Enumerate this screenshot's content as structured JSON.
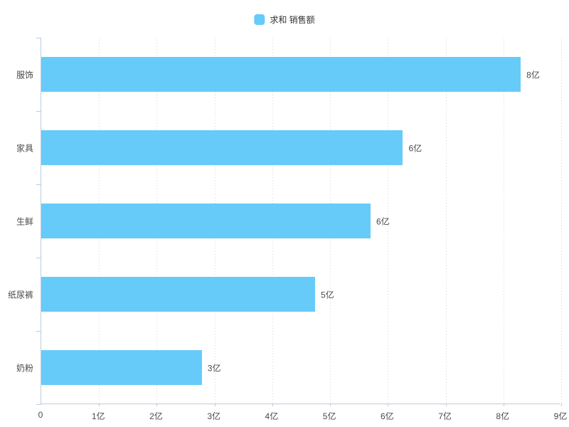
{
  "legend": {
    "label": "求和 销售额",
    "color": "#66CBF8",
    "position": "top-center"
  },
  "chart_data": {
    "type": "bar",
    "orientation": "horizontal",
    "title": "",
    "xlabel": "",
    "ylabel": "",
    "series_name": "求和 销售额",
    "categories": [
      "服饰",
      "家具",
      "生鲜",
      "纸尿裤",
      "奶粉"
    ],
    "values": [
      8.3,
      6.26,
      5.7,
      4.74,
      2.78
    ],
    "value_unit": "亿",
    "bar_labels": [
      "8亿",
      "6亿",
      "6亿",
      "5亿",
      "3亿"
    ],
    "xlim": [
      0,
      9
    ],
    "x_tick_labels": [
      "0",
      "1亿",
      "2亿",
      "3亿",
      "4亿",
      "5亿",
      "6亿",
      "7亿",
      "8亿",
      "9亿"
    ],
    "grid": "vertical-dotted",
    "legend_position": "top-center",
    "bar_color": "#66CBF8",
    "axis_color": "#BECCDE",
    "gridline_color": "#D6D6D6",
    "text_color": "#4A4A4A"
  }
}
